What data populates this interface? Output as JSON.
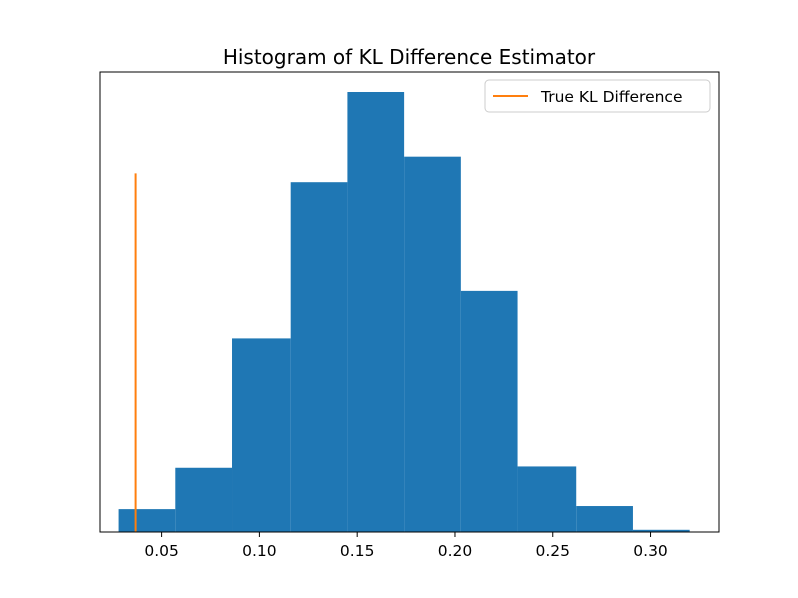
{
  "chart_data": {
    "type": "bar",
    "subtype": "histogram",
    "title": "Histogram of KL Difference Estimator",
    "xlabel": "",
    "ylabel": "",
    "xlim": [
      0.0185,
      0.335
    ],
    "ylim": [
      0,
      1
    ],
    "grid": false,
    "y_ticks_visible": false,
    "x_ticks": [
      0.05,
      0.1,
      0.15,
      0.2,
      0.25,
      0.3
    ],
    "x_tick_labels": [
      "0.05",
      "0.10",
      "0.15",
      "0.20",
      "0.25",
      "0.30"
    ],
    "bins": [
      {
        "start": 0.028,
        "end": 0.057,
        "height": 0.052
      },
      {
        "start": 0.057,
        "end": 0.086,
        "height": 0.146
      },
      {
        "start": 0.086,
        "end": 0.116,
        "height": 0.44
      },
      {
        "start": 0.116,
        "end": 0.145,
        "height": 0.795
      },
      {
        "start": 0.145,
        "end": 0.174,
        "height": 1.0
      },
      {
        "start": 0.174,
        "end": 0.203,
        "height": 0.853
      },
      {
        "start": 0.203,
        "end": 0.232,
        "height": 0.548
      },
      {
        "start": 0.232,
        "end": 0.262,
        "height": 0.149
      },
      {
        "start": 0.262,
        "end": 0.291,
        "height": 0.059
      },
      {
        "start": 0.291,
        "end": 0.32,
        "height": 0.005
      }
    ],
    "bar_color": "#1f77b4",
    "vline": {
      "x": 0.0367,
      "y_top": 0.815,
      "name": "True KL Difference",
      "color": "#ff7f0e"
    },
    "legend": {
      "placement": "top-right",
      "entries": [
        "True KL Difference"
      ]
    }
  }
}
